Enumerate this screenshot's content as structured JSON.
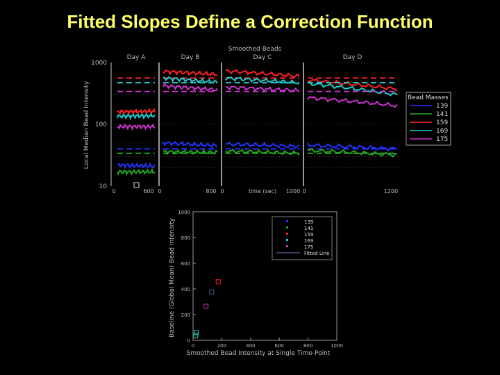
{
  "slide_title": "Fitted Slopes Define a Correction Function",
  "colors": {
    "title": "#ffff66",
    "background": "#000000",
    "chart_bg": "#000000",
    "scatter_bg": "#000000",
    "axis_text": "#bbbbbb",
    "mass_130": "#2233ff",
    "mass_141": "#22aa22",
    "mass_159": "#ff2222",
    "mass_169": "#22cccc",
    "mass_175": "#cc33cc"
  },
  "chart_data": [
    {
      "type": "line",
      "title": "Smoothed Beads",
      "ylabel": "Local Median Bead Intensity",
      "xlabel": "time (sec)",
      "yscale": "log",
      "ylim": [
        10,
        1000
      ],
      "y_ticks": [
        "1000",
        "100",
        "10"
      ],
      "panels": [
        {
          "title": "Day A",
          "x_ticks": [
            "0",
            "600"
          ]
        },
        {
          "title": "Day B",
          "x_ticks": [
            "0",
            "800"
          ]
        },
        {
          "title": "Day C",
          "x_ticks": [
            "0",
            "1000"
          ]
        },
        {
          "title": "Day D",
          "x_ticks": [
            "0",
            "1200"
          ]
        }
      ],
      "legend": {
        "title": "Bead Masses",
        "placement": "right",
        "entries": [
          "139",
          "141",
          "159",
          "169",
          "175"
        ]
      },
      "series": [
        {
          "name": "139",
          "color": "#2233ff",
          "panel_levels": [
            [
              22,
              21
            ],
            [
              50,
              45
            ],
            [
              48,
              44
            ],
            [
              46,
              40
            ]
          ],
          "baseline": 40
        },
        {
          "name": "141",
          "color": "#22aa22",
          "panel_levels": [
            [
              17,
              17
            ],
            [
              36,
              35
            ],
            [
              37,
              34
            ],
            [
              38,
              32
            ]
          ],
          "baseline": 34
        },
        {
          "name": "159",
          "color": "#ff2222",
          "panel_levels": [
            [
              160,
              162
            ],
            [
              720,
              640
            ],
            [
              730,
              600
            ],
            [
              520,
              370
            ]
          ],
          "baseline": 560
        },
        {
          "name": "169",
          "color": "#22cccc",
          "panel_levels": [
            [
              135,
              138
            ],
            [
              560,
              480
            ],
            [
              560,
              470
            ],
            [
              460,
              300
            ]
          ],
          "baseline": 470
        },
        {
          "name": "175",
          "color": "#cc33cc",
          "panel_levels": [
            [
              92,
              92
            ],
            [
              420,
              360
            ],
            [
              400,
              350
            ],
            [
              270,
              200
            ]
          ],
          "baseline": 340
        }
      ]
    },
    {
      "type": "scatter",
      "xlabel": "Smoothed Bead Intensity at Single Time-Point",
      "ylabel": "Baseline (Global Mean) Bead Intensity",
      "xlim": [
        0,
        1000
      ],
      "ylim": [
        0,
        1000
      ],
      "x_ticks": [
        0,
        200,
        400,
        600,
        800,
        1000
      ],
      "y_ticks": [
        0,
        200,
        400,
        600,
        800,
        1000
      ],
      "legend": {
        "placement": "top-right",
        "entries": [
          "139",
          "141",
          "159",
          "169",
          "175",
          "Fitted Line"
        ]
      },
      "series": [
        {
          "name": "139",
          "color": "#2233ff",
          "points": [
            [
              22,
              40
            ]
          ]
        },
        {
          "name": "141",
          "color": "#22aa22",
          "points": [
            [
              17,
              34
            ]
          ]
        },
        {
          "name": "159",
          "color": "#ff2222",
          "points": [
            [
              175,
              455
            ]
          ]
        },
        {
          "name": "169",
          "color": "#22cccc",
          "points": [
            [
              22,
              60
            ]
          ]
        },
        {
          "name": "175",
          "color": "#cc33cc",
          "points": [
            [
              90,
              265
            ]
          ]
        },
        {
          "name": "unlabeled",
          "color": "#5566aa",
          "points": [
            [
              130,
              375
            ]
          ]
        }
      ],
      "fitted_line": {
        "name": "Fitted Line",
        "color": "#6677cc"
      }
    }
  ]
}
